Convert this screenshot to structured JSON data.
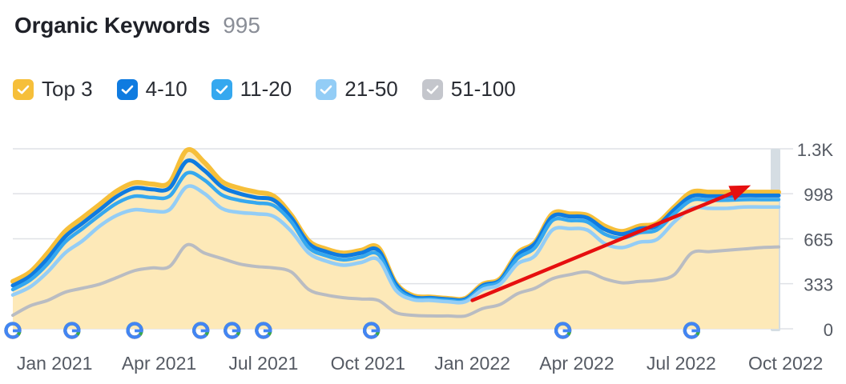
{
  "header": {
    "title": "Organic Keywords",
    "count": "995"
  },
  "legend": [
    {
      "label": "Top 3",
      "color": "#f6bf3a"
    },
    {
      "label": "4-10",
      "color": "#0f7be0"
    },
    {
      "label": "11-20",
      "color": "#35a8ef"
    },
    {
      "label": "21-50",
      "color": "#93cdf6"
    },
    {
      "label": "51-100",
      "color": "#c4c6cc"
    }
  ],
  "chart_data": {
    "type": "area",
    "title": "Organic Keywords",
    "ylim": [
      0,
      1330
    ],
    "yticks": [
      {
        "value": 0,
        "label": "0"
      },
      {
        "value": 333,
        "label": "333"
      },
      {
        "value": 665,
        "label": "665"
      },
      {
        "value": 998,
        "label": "998"
      },
      {
        "value": 1330,
        "label": "1.3K"
      }
    ],
    "xlim": [
      0,
      22
    ],
    "xticks": [
      {
        "value": 1.2,
        "label": "Jan 2021"
      },
      {
        "value": 4.2,
        "label": "Apr 2021"
      },
      {
        "value": 7.2,
        "label": "Jul 2021"
      },
      {
        "value": 10.2,
        "label": "Oct 2021"
      },
      {
        "value": 13.2,
        "label": "Jan 2022"
      },
      {
        "value": 16.2,
        "label": "Apr 2022"
      },
      {
        "value": 19.2,
        "label": "Jul 2022"
      },
      {
        "value": 22.2,
        "label": "Oct 2022"
      }
    ],
    "x": [
      0,
      0.5,
      1,
      1.5,
      2,
      2.5,
      3,
      3.5,
      4,
      4.5,
      5,
      5.5,
      6,
      6.5,
      7,
      7.5,
      8,
      8.5,
      9,
      9.5,
      10,
      10.5,
      11,
      11.5,
      12,
      12.5,
      13,
      13.5,
      14,
      14.5,
      15,
      15.5,
      16,
      16.5,
      17,
      17.5,
      18,
      18.5,
      19,
      19.5,
      20,
      20.5,
      21,
      21.5,
      22
    ],
    "series": [
      {
        "name": "Top 3",
        "color": "#f6bf3a",
        "values": [
          350,
          420,
          560,
          720,
          820,
          920,
          1020,
          1080,
          1070,
          1080,
          1320,
          1230,
          1090,
          1040,
          1010,
          980,
          840,
          650,
          590,
          560,
          580,
          600,
          340,
          245,
          235,
          225,
          225,
          330,
          370,
          560,
          640,
          850,
          850,
          840,
          760,
          720,
          760,
          780,
          900,
          1010,
          1010,
          1010,
          1010,
          1010,
          1010
        ]
      },
      {
        "name": "4-10",
        "color": "#0f7be0",
        "values": [
          320,
          390,
          520,
          680,
          780,
          880,
          980,
          1040,
          1030,
          1040,
          1240,
          1170,
          1050,
          1000,
          970,
          950,
          820,
          630,
          570,
          540,
          560,
          580,
          330,
          235,
          228,
          218,
          218,
          320,
          360,
          545,
          630,
          830,
          830,
          820,
          735,
          700,
          740,
          760,
          880,
          980,
          980,
          980,
          985,
          985,
          985
        ]
      },
      {
        "name": "11-20",
        "color": "#35a8ef",
        "values": [
          290,
          360,
          480,
          640,
          740,
          840,
          930,
          980,
          970,
          980,
          1150,
          1100,
          990,
          950,
          930,
          910,
          790,
          600,
          540,
          510,
          530,
          550,
          310,
          225,
          220,
          210,
          210,
          310,
          350,
          520,
          600,
          800,
          800,
          790,
          700,
          670,
          710,
          730,
          850,
          950,
          950,
          950,
          955,
          955,
          955
        ]
      },
      {
        "name": "21-50",
        "color": "#93cdf6",
        "values": [
          250,
          310,
          420,
          560,
          650,
          760,
          840,
          880,
          870,
          880,
          1050,
          1000,
          890,
          860,
          850,
          830,
          720,
          560,
          500,
          470,
          490,
          510,
          285,
          215,
          210,
          200,
          200,
          290,
          330,
          480,
          540,
          730,
          740,
          730,
          630,
          600,
          640,
          660,
          790,
          890,
          890,
          890,
          900,
          900,
          900
        ]
      },
      {
        "name": "51-100",
        "color": "#b9bcc2",
        "values": [
          100,
          170,
          210,
          270,
          300,
          330,
          380,
          430,
          450,
          460,
          620,
          560,
          520,
          480,
          460,
          450,
          420,
          290,
          250,
          230,
          220,
          210,
          120,
          100,
          95,
          95,
          95,
          150,
          180,
          260,
          300,
          370,
          400,
          420,
          370,
          340,
          350,
          360,
          400,
          560,
          570,
          580,
          590,
          600,
          605
        ]
      }
    ],
    "annotations": [
      {
        "type": "google-update-marker",
        "x": 0
      },
      {
        "type": "google-update-marker",
        "x": 1.7
      },
      {
        "type": "google-update-marker",
        "x": 3.5
      },
      {
        "type": "google-update-marker",
        "x": 5.4
      },
      {
        "type": "google-update-marker",
        "x": 6.3
      },
      {
        "type": "google-update-marker",
        "x": 7.2
      },
      {
        "type": "google-update-marker",
        "x": 10.3
      },
      {
        "type": "google-update-marker",
        "x": 15.8
      },
      {
        "type": "google-update-marker",
        "x": 19.5
      },
      {
        "type": "trend-arrow",
        "from": [
          13.2,
          210
        ],
        "to": [
          21.2,
          1060
        ],
        "color": "#e60f0f"
      }
    ]
  }
}
